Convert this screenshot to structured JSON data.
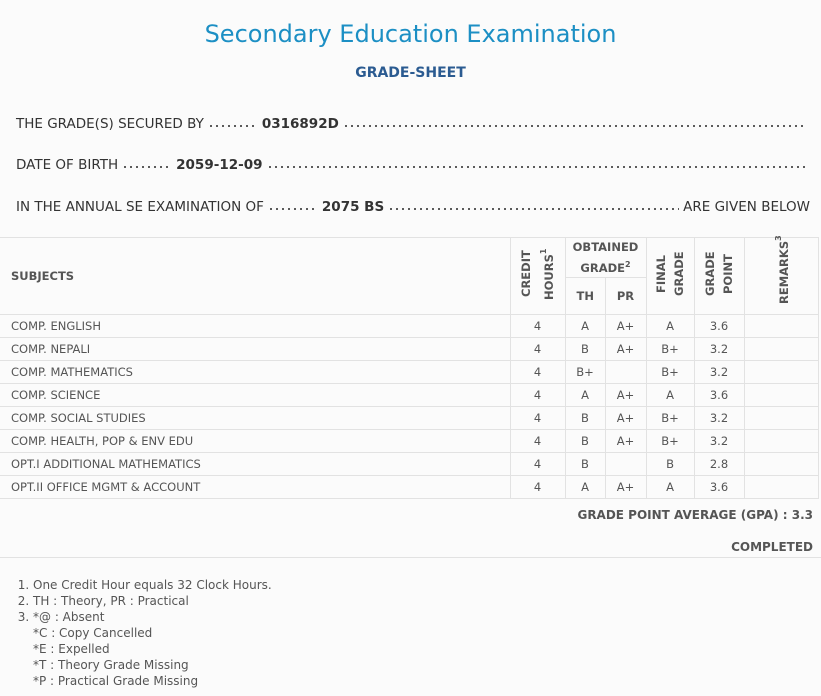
{
  "header": {
    "title": "Secondary Education Examination",
    "subtitle": "GRADE-SHEET"
  },
  "info": [
    {
      "label": "THE GRADE(S) SECURED BY",
      "value": "0316892D"
    },
    {
      "label": "DATE OF BIRTH",
      "value": "2059-12-09"
    },
    {
      "label": "IN THE ANNUAL SE EXAMINATION OF",
      "value": "2075 BS",
      "suffix": "ARE GIVEN BELOW"
    }
  ],
  "table": {
    "headers": {
      "subjects": "SUBJECTS",
      "credit_hours": "CREDIT HOURS",
      "credit_note": "1",
      "obtained_grade": "OBTAINED GRADE",
      "obtained_note": "2",
      "th": "TH",
      "pr": "PR",
      "final_grade": "FINAL GRADE",
      "grade_point": "GRADE POINT",
      "remarks": "REMARKS",
      "remarks_note": "3"
    },
    "rows": [
      [
        "COMP. ENGLISH",
        4,
        "A",
        "A+",
        "A",
        3.6
      ],
      [
        "COMP. NEPALI",
        4,
        "B",
        "A+",
        "B+",
        3.2
      ],
      [
        "COMP. MATHEMATICS",
        4,
        "B+",
        null,
        "B+",
        3.2
      ],
      [
        "COMP. SCIENCE",
        4,
        "A",
        "A+",
        "A",
        3.6
      ],
      [
        "COMP. SOCIAL STUDIES",
        4,
        "B",
        "A+",
        "B+",
        3.2
      ],
      [
        "COMP. HEALTH, POP & ENV EDU",
        4,
        "B",
        "A+",
        "B+",
        3.2
      ],
      [
        "OPT.I ADDITIONAL MATHEMATICS",
        4,
        "B",
        null,
        "B",
        2.8
      ],
      [
        "OPT.II OFFICE MGMT & ACCOUNT",
        4,
        "A",
        "A+",
        "A",
        3.6
      ]
    ]
  },
  "summary": {
    "gpa_label": "GRADE POINT AVERAGE (GPA) :",
    "gpa": 3.3,
    "status": "COMPLETED"
  },
  "notes": [
    "One Credit Hour equals 32 Clock Hours.",
    "TH : Theory, PR : Practical",
    [
      "*@ : Absent",
      "*C : Copy Cancelled",
      "*E : Expelled",
      "*T : Theory Grade Missing",
      "*P : Practical Grade Missing"
    ]
  ]
}
